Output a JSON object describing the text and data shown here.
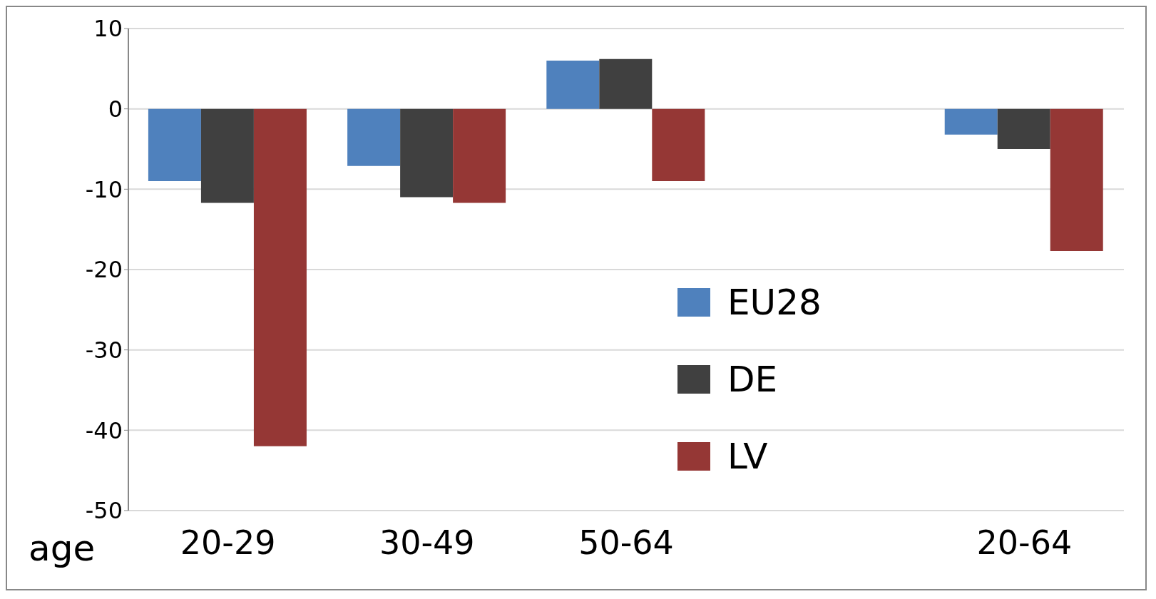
{
  "chart_data": {
    "type": "bar",
    "xlabel": "age",
    "categories": [
      "20-29",
      "30-49",
      "50-64",
      null,
      "20-64"
    ],
    "series": [
      {
        "name": "EU28",
        "color": "#4f81bd",
        "values": [
          -9.0,
          -7.1,
          6.0,
          null,
          -3.2
        ]
      },
      {
        "name": "DE",
        "color": "#404040",
        "values": [
          -11.7,
          -11.0,
          6.2,
          null,
          -5.0
        ]
      },
      {
        "name": "LV",
        "color": "#953735",
        "values": [
          -42.0,
          -11.7,
          -9.0,
          null,
          -17.7
        ]
      }
    ],
    "ylim": [
      -50,
      10
    ],
    "yticks": [
      -50,
      -40,
      -30,
      -20,
      -10,
      0,
      10
    ],
    "grid": "y",
    "legend": "center"
  }
}
